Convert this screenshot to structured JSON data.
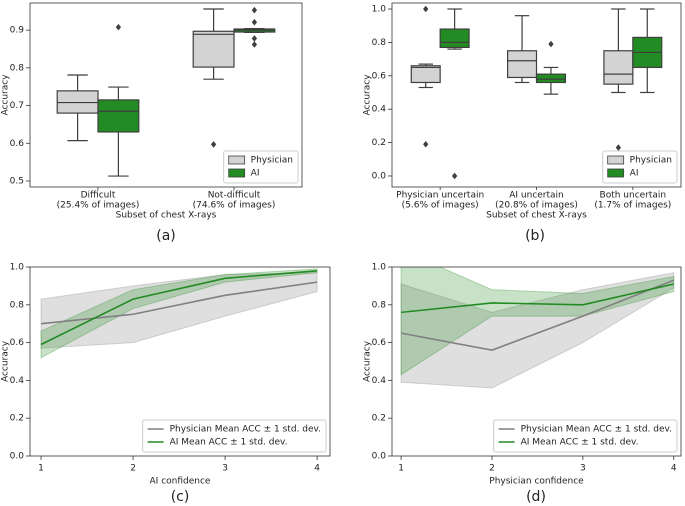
{
  "chart_data": [
    {
      "type": "box",
      "caption": "(a)",
      "y_label": "Accuracy",
      "x_label": "Subset of chest X-rays",
      "categories": [
        "Difficult",
        "Not-difficult"
      ],
      "category_notes": [
        "(25.4% of images)",
        "(74.6% of images)"
      ],
      "ylim": [
        0.484,
        0.972
      ],
      "yticks": [
        0.5,
        0.6,
        0.7,
        0.8,
        0.9
      ],
      "legend": "lower right",
      "series": [
        {
          "name": "Physician",
          "color": "#d3d3d3",
          "boxes": [
            {
              "min": 0.607,
              "q1": 0.68,
              "median": 0.708,
              "q3": 0.739,
              "max": 0.781,
              "outliers": []
            },
            {
              "min": 0.77,
              "q1": 0.802,
              "median": 0.889,
              "q3": 0.897,
              "max": 0.956,
              "outliers": [
                0.597
              ]
            }
          ]
        },
        {
          "name": "AI",
          "color": "#238b23",
          "boxes": [
            {
              "min": 0.513,
              "q1": 0.63,
              "median": 0.685,
              "q3": 0.715,
              "max": 0.749,
              "outliers": [
                0.908
              ]
            },
            {
              "min": 0.894,
              "q1": 0.895,
              "median": 0.9,
              "q3": 0.903,
              "max": 0.904,
              "outliers": [
                0.953,
                0.921,
                0.878,
                0.862
              ]
            }
          ]
        }
      ]
    },
    {
      "type": "box",
      "caption": "(b)",
      "y_label": "Accuracy",
      "x_label": "Subset of chest X-rays",
      "categories": [
        "Physician uncertain",
        "AI uncertain",
        "Both uncertain"
      ],
      "category_notes": [
        "(5.6% of images)",
        "(20.8% of images)",
        "(1.7% of images)"
      ],
      "ylim": [
        -0.066,
        1.036
      ],
      "yticks": [
        {
          "value": 0,
          "label": "0.0"
        },
        0.2,
        0.4,
        0.6,
        0.8,
        {
          "value": 1,
          "label": "1.0"
        }
      ],
      "legend": "lower right",
      "series": [
        {
          "name": "Physician",
          "color": "#d3d3d3",
          "boxes": [
            {
              "min": 0.53,
              "q1": 0.56,
              "median": 0.65,
              "q3": 0.66,
              "max": 0.67,
              "outliers": [
                1.0,
                0.19
              ]
            },
            {
              "min": 0.56,
              "q1": 0.59,
              "median": 0.69,
              "q3": 0.75,
              "max": 0.96,
              "outliers": []
            },
            {
              "min": 0.5,
              "q1": 0.55,
              "median": 0.61,
              "q3": 0.75,
              "max": 1.0,
              "outliers": [
                0.17
              ]
            }
          ]
        },
        {
          "name": "AI",
          "color": "#238b23",
          "boxes": [
            {
              "min": 0.76,
              "q1": 0.77,
              "median": 0.8,
              "q3": 0.88,
              "max": 1.0,
              "outliers": [
                0.0
              ]
            },
            {
              "min": 0.49,
              "q1": 0.56,
              "median": 0.58,
              "q3": 0.61,
              "max": 0.65,
              "outliers": [
                0.79
              ]
            },
            {
              "min": 0.5,
              "q1": 0.65,
              "median": 0.74,
              "q3": 0.83,
              "max": 1.0,
              "outliers": []
            }
          ]
        }
      ]
    },
    {
      "type": "line",
      "caption": "(c)",
      "y_label": "Accuracy",
      "x_label": "AI confidence",
      "x": [
        1,
        2,
        3,
        4
      ],
      "xlim": [
        0.88,
        4.14
      ],
      "xticks": [
        1,
        2,
        3,
        4
      ],
      "ylim": [
        0,
        1
      ],
      "yticks": [
        {
          "value": 0,
          "label": "0.0"
        },
        0.2,
        0.4,
        0.6,
        0.8,
        {
          "value": 1,
          "label": "1.0"
        }
      ],
      "legend": "lower right",
      "series": [
        {
          "name": "Physician Mean ACC ± 1 std. dev.",
          "color": "#808080",
          "values": [
            0.7,
            0.75,
            0.85,
            0.92
          ],
          "errors": [
            0.13,
            0.15,
            0.11,
            0.05
          ]
        },
        {
          "name": "AI Mean ACC ± 1 std. dev.",
          "color": "#238b23",
          "values": [
            0.59,
            0.83,
            0.94,
            0.98
          ],
          "errors": [
            0.07,
            0.05,
            0.02,
            0.01
          ]
        }
      ]
    },
    {
      "type": "line",
      "caption": "(d)",
      "y_label": "Accuracy",
      "x_label": "Physician confidence",
      "x": [
        1,
        2,
        3,
        4
      ],
      "xlim": [
        0.9,
        4.08
      ],
      "xticks": [
        1,
        2,
        3,
        4
      ],
      "ylim": [
        0,
        1
      ],
      "yticks": [
        {
          "value": 0,
          "label": "0.0"
        },
        0.2,
        0.4,
        0.6,
        0.8,
        {
          "value": 1,
          "label": "1.0"
        }
      ],
      "legend": "lower right",
      "series": [
        {
          "name": "Physician Mean ACC ± 1 std. dev.",
          "color": "#808080",
          "values": [
            0.65,
            0.56,
            0.74,
            0.93
          ],
          "errors": [
            0.26,
            0.2,
            0.14,
            0.04
          ]
        },
        {
          "name": "AI Mean ACC ± 1 std. dev.",
          "color": "#238b23",
          "values": [
            0.76,
            0.81,
            0.8,
            0.91
          ],
          "errors": [
            0.33,
            0.07,
            0.06,
            0.04
          ]
        }
      ]
    }
  ]
}
